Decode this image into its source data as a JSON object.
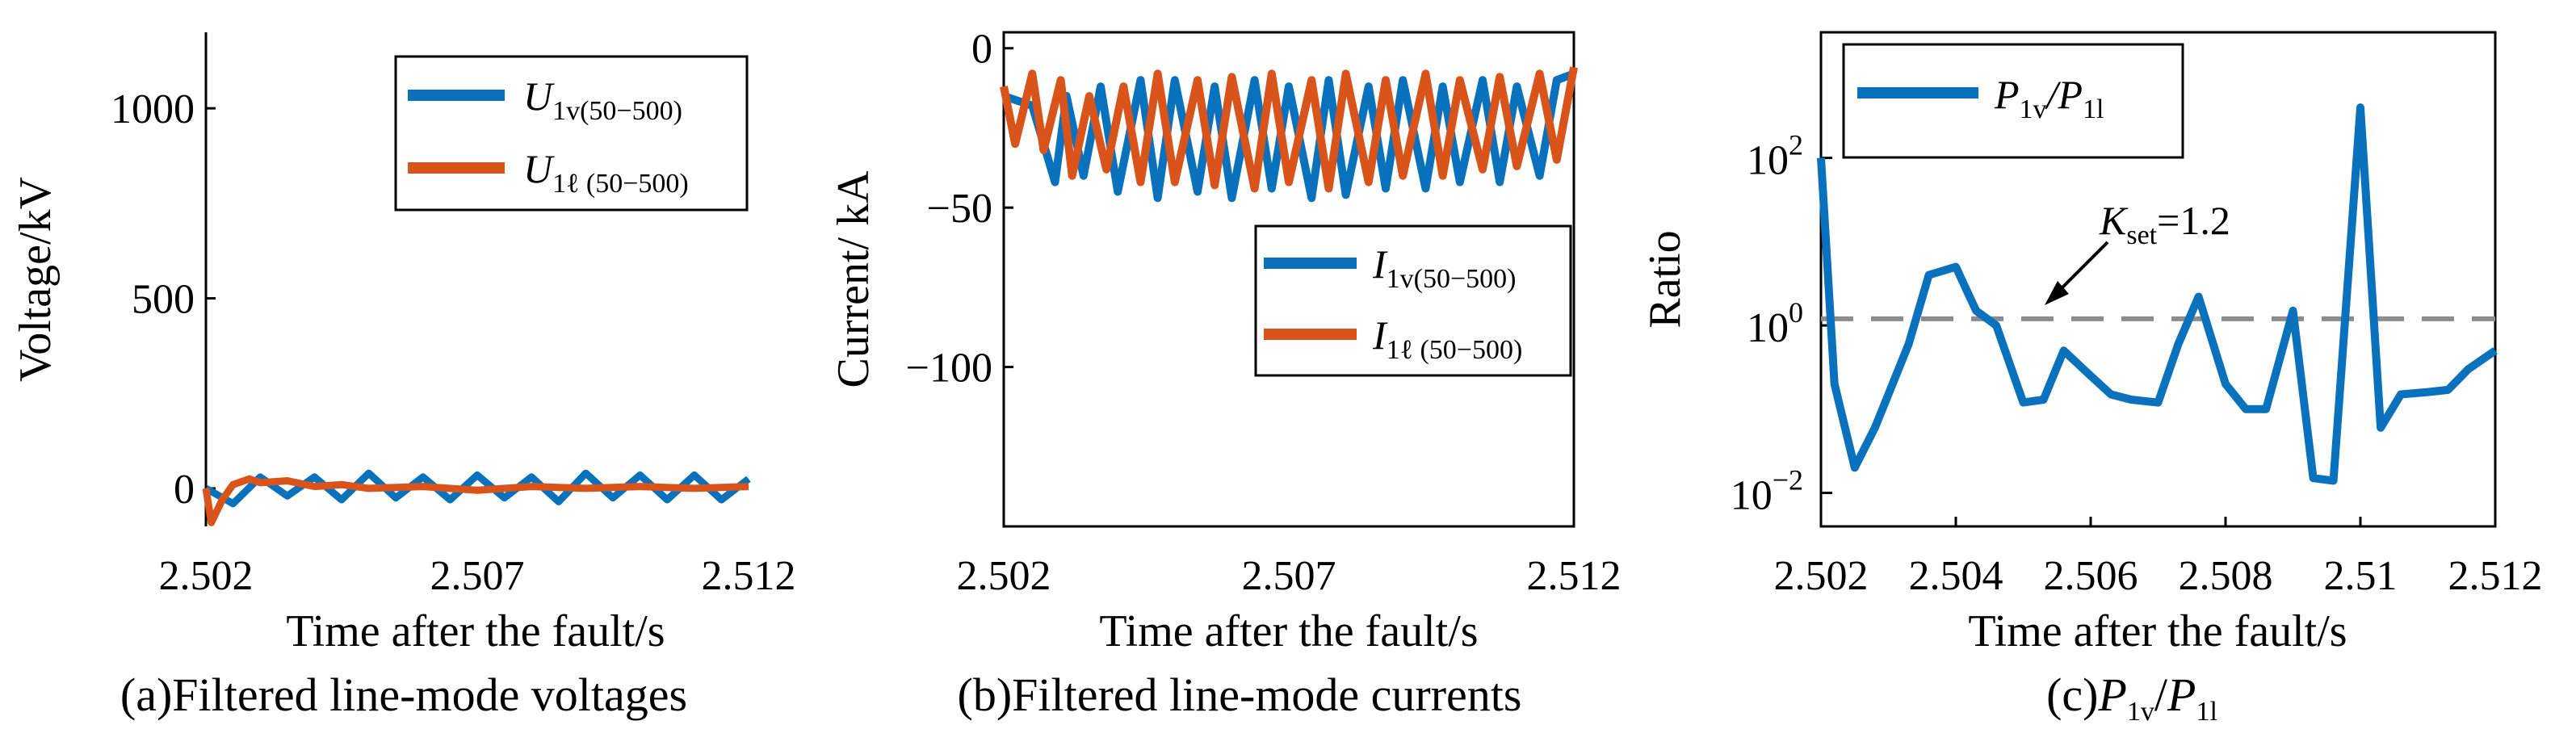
{
  "colors": {
    "blue": "#0a72bd",
    "orange": "#d9541a",
    "threshold": "#8c8c8c"
  },
  "chart_data": [
    {
      "type": "line",
      "caption": "(a)Filtered line-mode voltages",
      "xlabel": "Time after the fault/s",
      "ylabel": "Voltage/kV",
      "xlim": [
        2.502,
        2.512
      ],
      "ylim": [
        -100,
        1200
      ],
      "xticks": [
        "2.502",
        "2.507",
        "2.512"
      ],
      "yticks": [
        "0",
        "500",
        "1000"
      ],
      "legend_position": "top-right",
      "series": [
        {
          "name_main": "U",
          "name_sub": "1v(50−500)",
          "color": "blue",
          "x": [
            2.502,
            2.5025,
            2.503,
            2.5035,
            2.504,
            2.5045,
            2.505,
            2.5055,
            2.506,
            2.5065,
            2.507,
            2.5075,
            2.508,
            2.5085,
            2.509,
            2.5095,
            2.51,
            2.5105,
            2.511,
            2.5115,
            2.512
          ],
          "values": [
            0,
            -40,
            30,
            -20,
            30,
            -30,
            40,
            -25,
            30,
            -30,
            35,
            -25,
            30,
            -35,
            40,
            -25,
            35,
            -30,
            35,
            -30,
            25
          ]
        },
        {
          "name_main": "U",
          "name_sub": "1ℓ (50−500)",
          "color": "orange",
          "x": [
            2.502,
            2.5021,
            2.5023,
            2.5025,
            2.5028,
            2.503,
            2.5035,
            2.504,
            2.5045,
            2.505,
            2.506,
            2.507,
            2.508,
            2.509,
            2.51,
            2.511,
            2.512
          ],
          "values": [
            0,
            -90,
            -30,
            10,
            25,
            15,
            20,
            5,
            10,
            0,
            5,
            -5,
            5,
            0,
            5,
            0,
            5
          ]
        }
      ]
    },
    {
      "type": "line",
      "caption": "(b)Filtered line-mode currents",
      "xlabel": "Time after the fault/s",
      "ylabel": "Current/ kA",
      "xlim": [
        2.502,
        2.512
      ],
      "ylim": [
        -150,
        5
      ],
      "xticks": [
        "2.502",
        "2.507",
        "2.512"
      ],
      "yticks": [
        "0",
        "−50",
        "−100"
      ],
      "legend_position": "right",
      "series": [
        {
          "name_main": "I",
          "name_sub": "1v(50−500)",
          "color": "blue",
          "x": [
            2.502,
            2.5025,
            2.5029,
            2.5031,
            2.5034,
            2.5037,
            2.504,
            2.5044,
            2.5047,
            2.505,
            2.5054,
            2.5057,
            2.506,
            2.5064,
            2.5067,
            2.507,
            2.5074,
            2.5077,
            2.508,
            2.5084,
            2.5087,
            2.509,
            2.5094,
            2.5097,
            2.51,
            2.5104,
            2.5107,
            2.511,
            2.5114,
            2.5117,
            2.512
          ],
          "values": [
            -15,
            -18,
            -42,
            -15,
            -40,
            -12,
            -45,
            -10,
            -47,
            -10,
            -45,
            -12,
            -47,
            -10,
            -44,
            -12,
            -47,
            -10,
            -46,
            -12,
            -44,
            -10,
            -44,
            -12,
            -42,
            -10,
            -42,
            -12,
            -40,
            -10,
            -8
          ]
        },
        {
          "name_main": "I",
          "name_sub": "1ℓ (50−500)",
          "color": "orange",
          "x": [
            2.502,
            2.5022,
            2.5025,
            2.5027,
            2.503,
            2.5032,
            2.5035,
            2.5038,
            2.5041,
            2.5044,
            2.5047,
            2.505,
            2.5054,
            2.5057,
            2.506,
            2.5064,
            2.5067,
            2.507,
            2.5074,
            2.5077,
            2.508,
            2.5084,
            2.5087,
            2.509,
            2.5094,
            2.5097,
            2.51,
            2.5104,
            2.5107,
            2.511,
            2.5114,
            2.5117,
            2.512
          ],
          "values": [
            -12,
            -30,
            -8,
            -32,
            -10,
            -40,
            -15,
            -38,
            -12,
            -42,
            -8,
            -42,
            -10,
            -43,
            -9,
            -44,
            -8,
            -42,
            -10,
            -44,
            -8,
            -42,
            -10,
            -40,
            -8,
            -40,
            -10,
            -38,
            -9,
            -37,
            -8,
            -35,
            -6
          ]
        }
      ]
    },
    {
      "type": "line",
      "caption": "(c)P1v/P1l",
      "caption_main": "(c)",
      "xlabel": "Time after the fault/s",
      "ylabel": "Ratio",
      "log_y": true,
      "xlim": [
        2.502,
        2.512
      ],
      "ylim_log10": [
        -2.4,
        3.5
      ],
      "xticks": [
        "2.502",
        "2.504",
        "2.506",
        "2.508",
        "2.51",
        "2.512"
      ],
      "yticks": [
        {
          "base": "10",
          "exp": "2"
        },
        {
          "base": "10",
          "exp": "0"
        },
        {
          "base": "10",
          "exp": "−2"
        }
      ],
      "legend_position": "top-left",
      "threshold": {
        "value": 1.2,
        "label_main": "K",
        "label_sub": "set",
        "label_rest": "=1.2"
      },
      "series": [
        {
          "name": "P1v/P1l",
          "color": "blue",
          "x": [
            2.502,
            2.5022,
            2.5025,
            2.5028,
            2.503,
            2.5033,
            2.5036,
            2.504,
            2.5043,
            2.5046,
            2.505,
            2.5053,
            2.5056,
            2.506,
            2.5063,
            2.5066,
            2.507,
            2.5073,
            2.5076,
            2.508,
            2.5083,
            2.5086,
            2.509,
            2.5093,
            2.5096,
            2.51,
            2.5103,
            2.5106,
            2.511,
            2.5113,
            2.5116,
            2.512
          ],
          "values": [
            100,
            0.2,
            0.02,
            0.06,
            0.15,
            0.6,
            4,
            5,
            1.5,
            1.0,
            0.12,
            0.13,
            0.5,
            0.25,
            0.15,
            0.13,
            0.12,
            0.6,
            2.2,
            0.2,
            0.1,
            0.1,
            1.5,
            0.015,
            0.014,
            400,
            0.06,
            0.15,
            0.16,
            0.17,
            0.3,
            0.5
          ]
        }
      ]
    }
  ]
}
